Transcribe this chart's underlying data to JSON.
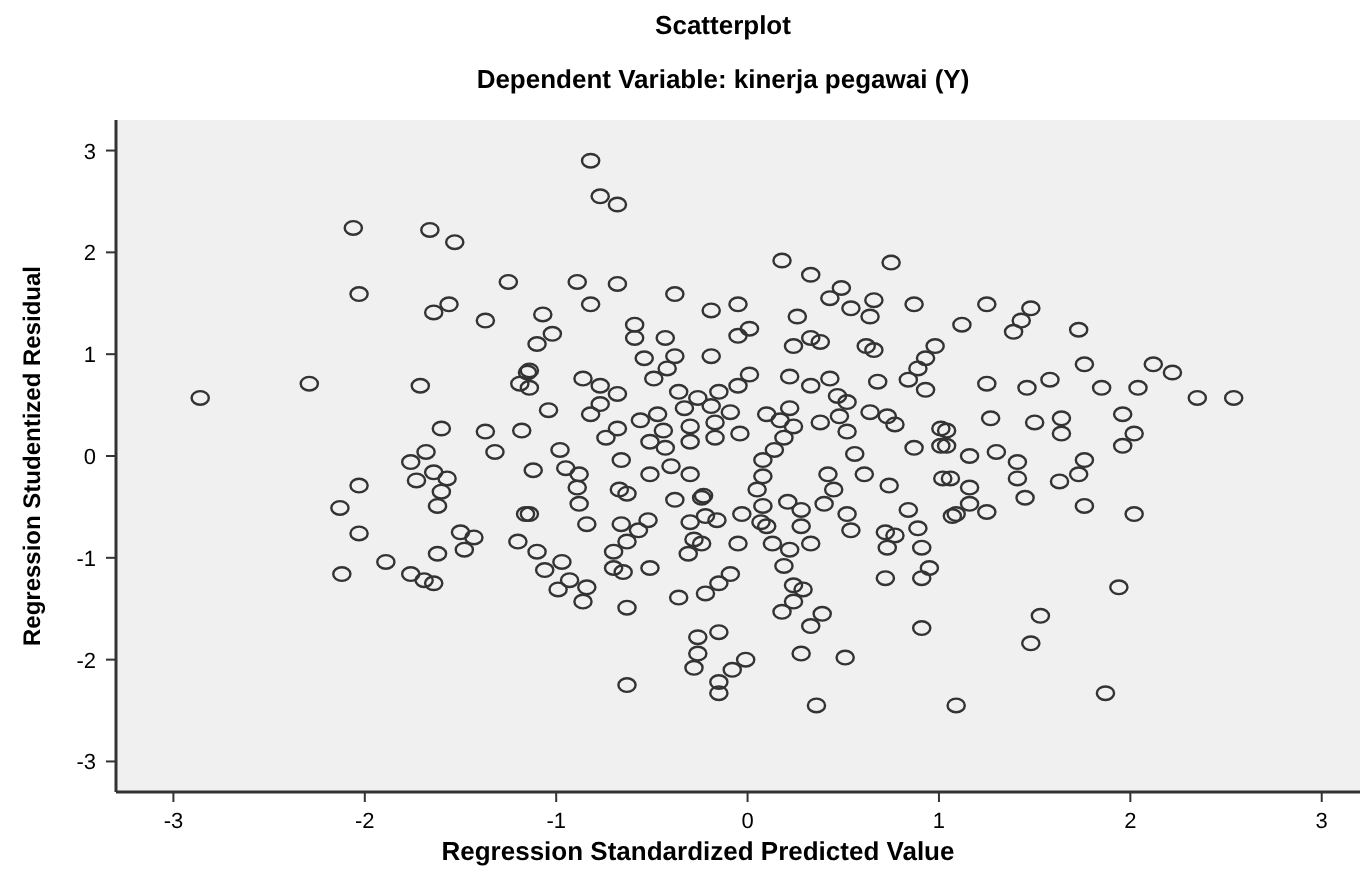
{
  "chart_data": {
    "type": "scatter",
    "title": "Scatterplot",
    "subtitle": "Dependent Variable: kinerja pegawai (Y)",
    "xlabel": "Regression Standardized Predicted Value",
    "ylabel": "Regression Studentized Residual",
    "xlim": [
      -3.3,
      3.2
    ],
    "ylim": [
      -3.3,
      3.3
    ],
    "xticks": [
      -3,
      -2,
      -1,
      0,
      1,
      2,
      3
    ],
    "yticks": [
      -3,
      -2,
      -1,
      0,
      1,
      2,
      3
    ],
    "grid": false,
    "marker": "circle",
    "series": [
      {
        "color": "#333333",
        "x": [
          -2.06,
          -1.66,
          -1.53,
          -1.25,
          -2.03,
          -1.64,
          -1.56,
          -1.37,
          -2.29,
          -2.86,
          -1.71,
          -1.19,
          -1.15,
          -1.6,
          -1.37,
          -1.18,
          -1.32,
          -1.68,
          -1.76,
          -1.64,
          -1.73,
          -1.57,
          -1.6,
          -2.03,
          -1.62,
          -2.13,
          -2.03,
          -1.5,
          -1.43,
          -1.48,
          -1.62,
          -1.2,
          -1.16,
          -1.89,
          -2.12,
          -1.76,
          -1.69,
          -1.64,
          1.25,
          1.48,
          1.43,
          1.39,
          1.12,
          1.73,
          1.76,
          2.12,
          2.22,
          1.25,
          1.46,
          1.58,
          1.85,
          2.04,
          2.35,
          2.54,
          1.96,
          1.27,
          1.5,
          1.64,
          1.64,
          2.02,
          1.96,
          1.3,
          1.16,
          1.41,
          1.76,
          1.41,
          1.63,
          1.73,
          1.16,
          1.45,
          1.76,
          1.06,
          1.04,
          1.04,
          1.16,
          1.09,
          1.25,
          2.02,
          1.94,
          1.53,
          1.48,
          1.87,
          1.09,
          -0.82,
          -0.77,
          -0.68,
          0.18,
          0.75,
          0.33,
          0.49,
          0.43,
          0.66,
          0.87,
          0.54,
          0.64,
          -0.89,
          -0.68,
          -0.82,
          -0.38,
          -0.19,
          -0.05,
          -1.07,
          -1.02,
          -1.1,
          -0.59,
          -0.59,
          -0.43,
          -0.05,
          0.01,
          0.26,
          0.24,
          0.33,
          0.38,
          0.62,
          0.66,
          0.98,
          0.93,
          0.89,
          0.84,
          0.93,
          -0.54,
          -0.38,
          -0.19,
          -0.42,
          -0.49,
          -0.86,
          -0.77,
          -0.68,
          -0.77,
          -0.82,
          -1.04,
          -1.14,
          -1.14,
          0.01,
          0.22,
          0.43,
          0.68,
          0.33,
          -0.05,
          -0.15,
          -0.36,
          -0.26,
          0.47,
          0.52,
          -0.33,
          -0.19,
          -0.09,
          0.22,
          0.48,
          0.64,
          0.73,
          0.77,
          1.01,
          1.01,
          0.38,
          0.1,
          0.17,
          0.24,
          0.52,
          -0.04,
          -0.17,
          -0.17,
          -0.3,
          -0.47,
          -0.56,
          -0.68,
          -0.74,
          -0.44,
          -0.3,
          -0.51,
          -0.43,
          0.19,
          0.14,
          0.56,
          -0.98,
          -0.66,
          -0.95,
          -0.88,
          -1.12,
          -0.89,
          -0.67,
          -0.51,
          -0.4,
          -0.3,
          0.08,
          0.08,
          0.42,
          0.61,
          0.74,
          0.87,
          1.02,
          -0.63,
          -0.23,
          0.05,
          0.21,
          0.45,
          -1.14,
          -0.88,
          -0.84,
          -1.1,
          -1.06,
          -0.97,
          -0.99,
          -0.93,
          -0.84,
          -0.86,
          -0.66,
          -0.63,
          -0.7,
          -0.7,
          -0.65,
          -0.51,
          -0.57,
          -0.52,
          -0.63,
          -0.63,
          -0.38,
          -0.3,
          -0.28,
          -0.31,
          -0.24,
          -0.22,
          -0.16,
          -0.24,
          -0.36,
          -0.22,
          -0.15,
          -0.09,
          -0.05,
          -0.03,
          0.07,
          0.1,
          0.08,
          0.28,
          0.28,
          0.13,
          0.22,
          0.33,
          0.19,
          0.24,
          0.29,
          0.24,
          0.18,
          0.39,
          0.33,
          -0.26,
          -0.15,
          -0.26,
          -0.28,
          -0.01,
          -0.08,
          -0.15,
          -0.15,
          0.28,
          0.51,
          0.36,
          0.52,
          0.54,
          0.4,
          0.72,
          0.77,
          0.73,
          0.72,
          0.89,
          0.91,
          0.95,
          0.91,
          0.91,
          0.84,
          1.07
        ],
        "values": [
          2.24,
          2.22,
          2.1,
          1.71,
          1.59,
          1.41,
          1.49,
          1.33,
          0.71,
          0.57,
          0.69,
          0.71,
          0.82,
          0.27,
          0.24,
          0.25,
          0.04,
          0.04,
          -0.06,
          -0.16,
          -0.24,
          -0.22,
          -0.35,
          -0.29,
          -0.49,
          -0.51,
          -0.76,
          -0.75,
          -0.8,
          -0.92,
          -0.96,
          -0.84,
          -0.57,
          -1.04,
          -1.16,
          -1.16,
          -1.22,
          -1.25,
          1.49,
          1.45,
          1.33,
          1.22,
          1.29,
          1.24,
          0.9,
          0.9,
          0.82,
          0.71,
          0.67,
          0.75,
          0.67,
          0.67,
          0.57,
          0.57,
          0.41,
          0.37,
          0.33,
          0.37,
          0.22,
          0.22,
          0.1,
          0.04,
          0.0,
          -0.06,
          -0.04,
          -0.22,
          -0.25,
          -0.18,
          -0.31,
          -0.41,
          -0.49,
          -0.22,
          0.25,
          0.1,
          -0.47,
          -0.57,
          -0.55,
          -0.57,
          -1.29,
          -1.57,
          -1.84,
          -2.33,
          -2.45,
          2.9,
          2.55,
          2.47,
          1.92,
          1.9,
          1.78,
          1.65,
          1.55,
          1.53,
          1.49,
          1.45,
          1.37,
          1.71,
          1.69,
          1.49,
          1.59,
          1.43,
          1.49,
          1.39,
          1.2,
          1.1,
          1.29,
          1.16,
          1.16,
          1.18,
          1.25,
          1.37,
          1.08,
          1.16,
          1.12,
          1.08,
          1.04,
          1.08,
          0.96,
          0.86,
          0.75,
          0.65,
          0.96,
          0.98,
          0.98,
          0.86,
          0.76,
          0.76,
          0.69,
          0.61,
          0.51,
          0.41,
          0.45,
          0.84,
          0.67,
          0.8,
          0.78,
          0.76,
          0.73,
          0.69,
          0.69,
          0.63,
          0.63,
          0.57,
          0.59,
          0.53,
          0.47,
          0.49,
          0.43,
          0.47,
          0.39,
          0.43,
          0.39,
          0.31,
          0.27,
          0.1,
          0.33,
          0.41,
          0.35,
          0.29,
          0.24,
          0.22,
          0.18,
          0.33,
          0.29,
          0.41,
          0.35,
          0.27,
          0.18,
          0.25,
          0.14,
          0.14,
          0.08,
          0.18,
          0.06,
          0.02,
          0.06,
          -0.04,
          -0.12,
          -0.18,
          -0.14,
          -0.31,
          -0.33,
          -0.18,
          -0.1,
          -0.18,
          -0.04,
          -0.2,
          -0.18,
          -0.18,
          -0.29,
          0.08,
          -0.22,
          -0.37,
          -0.39,
          -0.33,
          -0.45,
          -0.33,
          -0.57,
          -0.47,
          -0.67,
          -0.94,
          -1.12,
          -1.04,
          -1.31,
          -1.22,
          -1.29,
          -1.43,
          -0.67,
          -0.84,
          -0.94,
          -1.1,
          -1.14,
          -1.1,
          -0.73,
          -0.63,
          -1.49,
          -2.25,
          -0.43,
          -0.65,
          -0.82,
          -0.96,
          -0.86,
          -0.59,
          -0.63,
          -0.41,
          -1.39,
          -1.35,
          -1.25,
          -1.16,
          -0.86,
          -0.57,
          -0.65,
          -0.69,
          -0.49,
          -0.53,
          -0.69,
          -0.86,
          -0.92,
          -0.86,
          -1.08,
          -1.27,
          -1.31,
          -1.43,
          -1.53,
          -1.55,
          -1.67,
          -1.78,
          -1.73,
          -1.94,
          -2.08,
          -2.0,
          -2.1,
          -2.22,
          -2.33,
          -1.94,
          -1.98,
          -2.45,
          -0.57,
          -0.73,
          -0.47,
          -0.75,
          -0.78,
          -0.9,
          -1.2,
          -0.71,
          -0.9,
          -1.1,
          -1.2,
          -1.69,
          -0.53,
          -0.59
        ]
      }
    ]
  }
}
